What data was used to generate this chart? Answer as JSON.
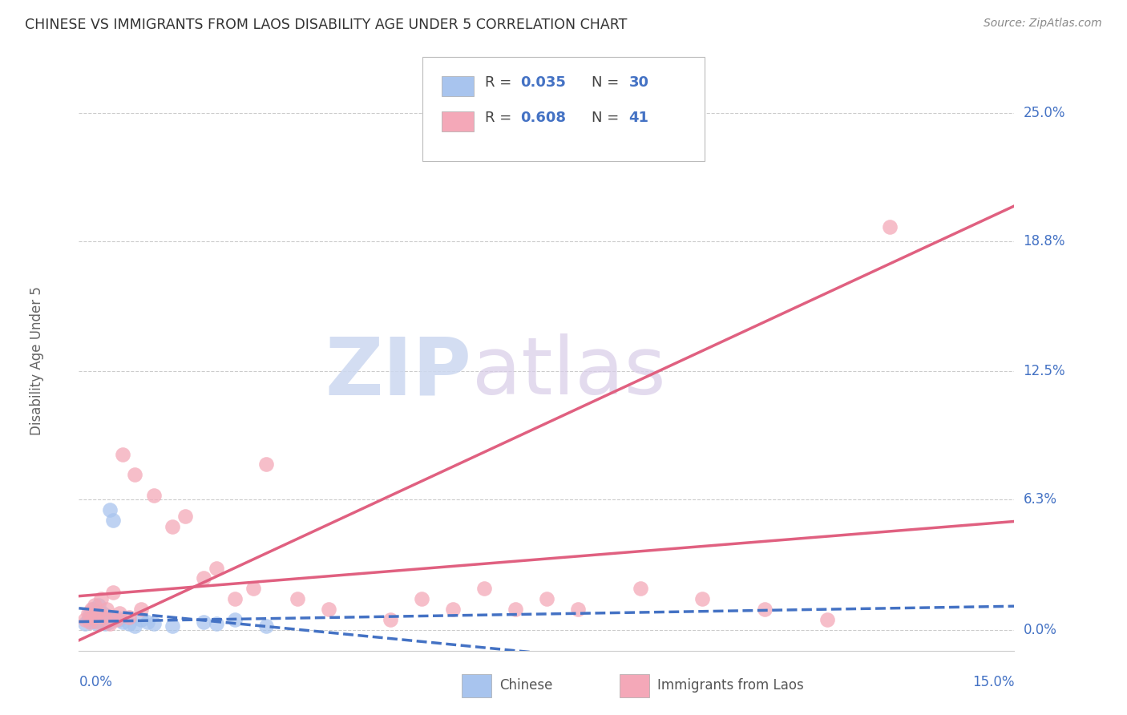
{
  "title": "CHINESE VS IMMIGRANTS FROM LAOS DISABILITY AGE UNDER 5 CORRELATION CHART",
  "source": "Source: ZipAtlas.com",
  "ylabel": "Disability Age Under 5",
  "ytick_labels": [
    "0.0%",
    "6.3%",
    "12.5%",
    "18.8%",
    "25.0%"
  ],
  "ytick_values": [
    0.0,
    6.3,
    12.5,
    18.8,
    25.0
  ],
  "xtick_labels": [
    "0.0%",
    "15.0%"
  ],
  "xtick_values": [
    0.0,
    15.0
  ],
  "xlim": [
    0.0,
    15.0
  ],
  "ylim": [
    -1.0,
    27.0
  ],
  "blue_color": "#a8c4ee",
  "pink_color": "#f4a8b8",
  "blue_line_color": "#4472c4",
  "pink_line_color": "#e06080",
  "label_color": "#4472c4",
  "background_color": "#ffffff",
  "grid_color": "#cccccc",
  "chinese_x": [
    0.1,
    0.15,
    0.18,
    0.2,
    0.22,
    0.25,
    0.28,
    0.3,
    0.32,
    0.35,
    0.38,
    0.4,
    0.42,
    0.45,
    0.48,
    0.5,
    0.55,
    0.6,
    0.65,
    0.7,
    0.8,
    0.9,
    1.0,
    1.1,
    1.2,
    1.5,
    2.0,
    2.2,
    2.5,
    3.0
  ],
  "chinese_y": [
    0.3,
    0.5,
    0.8,
    0.4,
    1.0,
    0.6,
    0.5,
    0.3,
    1.2,
    0.4,
    0.8,
    0.5,
    0.3,
    0.7,
    0.4,
    5.8,
    5.3,
    0.6,
    0.5,
    0.4,
    0.3,
    0.2,
    0.5,
    0.4,
    0.3,
    0.2,
    0.4,
    0.3,
    0.5,
    0.2
  ],
  "laos_x": [
    0.1,
    0.15,
    0.18,
    0.2,
    0.22,
    0.25,
    0.3,
    0.32,
    0.35,
    0.4,
    0.45,
    0.5,
    0.55,
    0.6,
    0.65,
    0.7,
    0.8,
    0.9,
    1.0,
    1.2,
    1.5,
    1.7,
    2.0,
    2.2,
    2.5,
    2.8,
    3.0,
    3.5,
    4.0,
    5.0,
    5.5,
    6.0,
    6.5,
    7.0,
    7.5,
    8.0,
    9.0,
    10.0,
    11.0,
    12.0,
    13.0
  ],
  "laos_y": [
    0.5,
    0.8,
    0.4,
    1.0,
    0.6,
    1.2,
    0.4,
    0.8,
    1.5,
    0.6,
    1.0,
    0.3,
    1.8,
    0.5,
    0.8,
    8.5,
    0.6,
    7.5,
    1.0,
    6.5,
    5.0,
    5.5,
    2.5,
    3.0,
    1.5,
    2.0,
    8.0,
    1.5,
    1.0,
    0.5,
    1.5,
    1.0,
    2.0,
    1.0,
    1.5,
    1.0,
    2.0,
    1.5,
    1.0,
    0.5,
    19.5
  ],
  "watermark_zip_color": "#ccd8f0",
  "watermark_atlas_color": "#d8cce8",
  "legend_entries": [
    {
      "r": "0.035",
      "n": "30",
      "color": "#a8c4ee"
    },
    {
      "r": "0.608",
      "n": "41",
      "color": "#f4a8b8"
    }
  ]
}
